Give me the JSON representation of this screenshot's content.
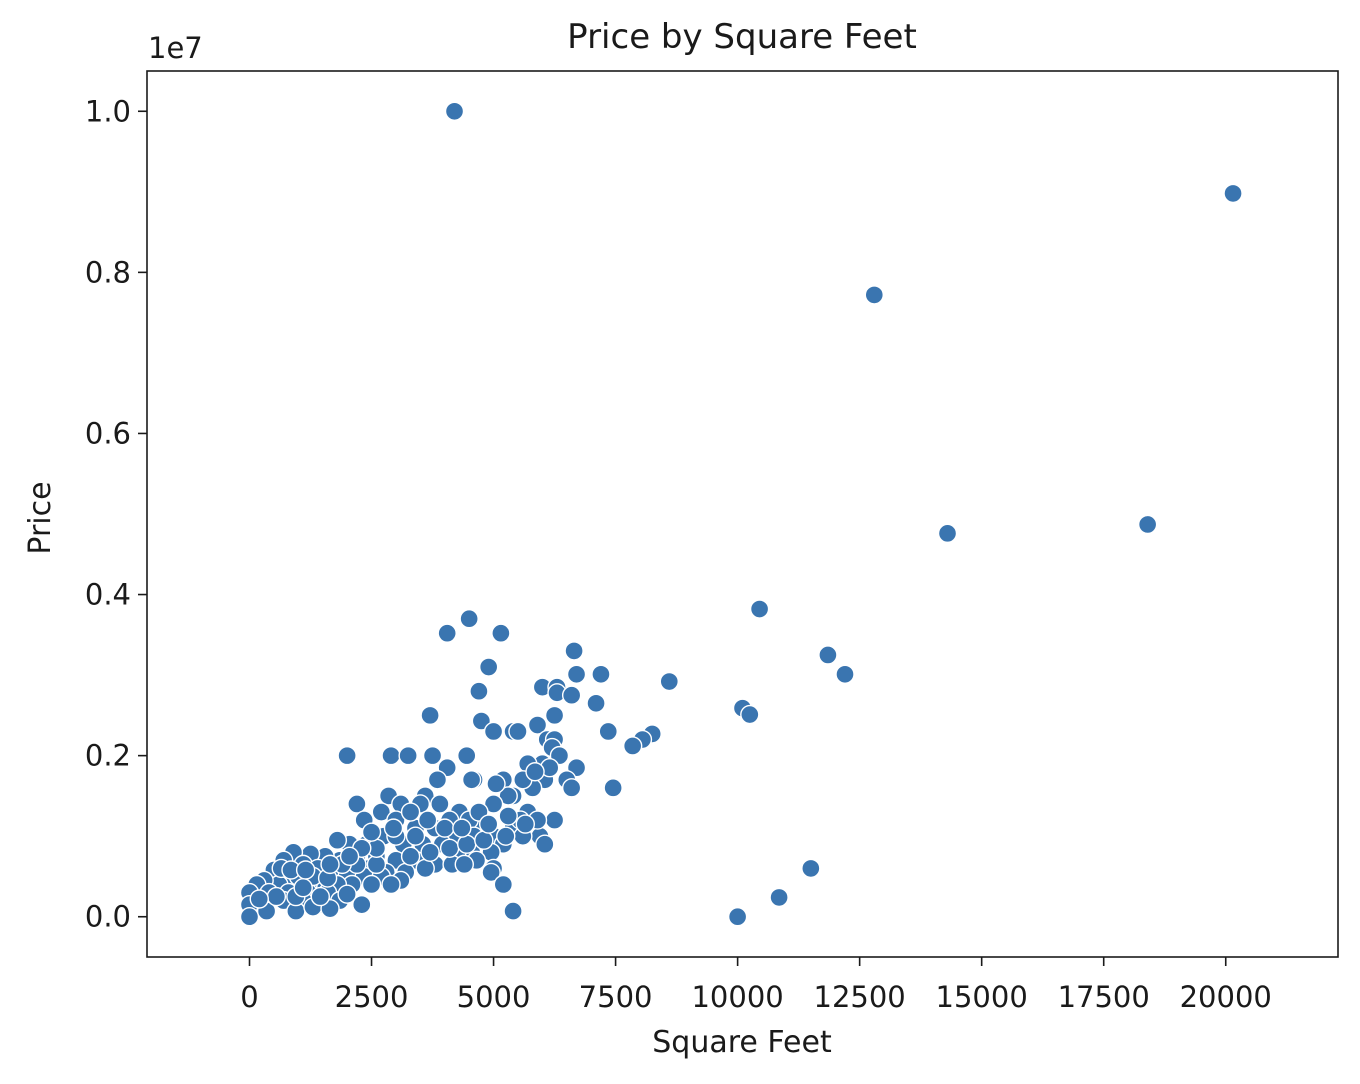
{
  "chart_data": {
    "type": "scatter",
    "title": "Price by Square Feet",
    "xlabel": "Square Feet",
    "ylabel": "Price",
    "y_offset_label": "1e7",
    "xlim": [
      -2100,
      22300
    ],
    "ylim": [
      -0.05,
      1.05
    ],
    "y_unit_multiplier": 10000000,
    "x_ticks": [
      0,
      2500,
      5000,
      7500,
      10000,
      12500,
      15000,
      17500,
      20000
    ],
    "x_tick_labels": [
      "0",
      "2500",
      "5000",
      "7500",
      "10000",
      "12500",
      "15000",
      "17500",
      "20000"
    ],
    "y_ticks": [
      0.0,
      0.2,
      0.4,
      0.6,
      0.8,
      1.0
    ],
    "y_tick_labels": [
      "0.0",
      "0.2",
      "0.4",
      "0.6",
      "0.8",
      "1.0"
    ],
    "grid": false,
    "marker_color": "#3a75b0",
    "marker_edge_color": "#ffffff",
    "points": [
      [
        4200,
        1.0
      ],
      [
        20150,
        0.898
      ],
      [
        12800,
        0.772
      ],
      [
        14300,
        0.476
      ],
      [
        18400,
        0.487
      ],
      [
        10450,
        0.382
      ],
      [
        11850,
        0.325
      ],
      [
        12200,
        0.301
      ],
      [
        10100,
        0.259
      ],
      [
        10250,
        0.251
      ],
      [
        11500,
        0.06
      ],
      [
        10850,
        0.024
      ],
      [
        10000,
        0.0
      ],
      [
        4050,
        0.352
      ],
      [
        4500,
        0.37
      ],
      [
        5150,
        0.352
      ],
      [
        4900,
        0.31
      ],
      [
        4700,
        0.28
      ],
      [
        6650,
        0.33
      ],
      [
        6700,
        0.301
      ],
      [
        7200,
        0.301
      ],
      [
        8600,
        0.292
      ],
      [
        6000,
        0.285
      ],
      [
        6300,
        0.285
      ],
      [
        6300,
        0.278
      ],
      [
        6600,
        0.275
      ],
      [
        7100,
        0.265
      ],
      [
        3700,
        0.25
      ],
      [
        6250,
        0.25
      ],
      [
        4750,
        0.243
      ],
      [
        5900,
        0.238
      ],
      [
        5000,
        0.23
      ],
      [
        5400,
        0.23
      ],
      [
        5500,
        0.23
      ],
      [
        7350,
        0.23
      ],
      [
        8250,
        0.227
      ],
      [
        8050,
        0.22
      ],
      [
        7850,
        0.212
      ],
      [
        6100,
        0.22
      ],
      [
        6250,
        0.22
      ],
      [
        6000,
        0.19
      ],
      [
        6200,
        0.21
      ],
      [
        6350,
        0.2
      ],
      [
        5700,
        0.19
      ],
      [
        6700,
        0.185
      ],
      [
        6500,
        0.17
      ],
      [
        6600,
        0.16
      ],
      [
        7450,
        0.16
      ],
      [
        6050,
        0.17
      ],
      [
        5800,
        0.16
      ],
      [
        5600,
        0.17
      ],
      [
        5200,
        0.17
      ],
      [
        4600,
        0.17
      ],
      [
        2000,
        0.2
      ],
      [
        2900,
        0.2
      ],
      [
        3250,
        0.2
      ],
      [
        3750,
        0.2
      ],
      [
        4450,
        0.2
      ],
      [
        4050,
        0.185
      ],
      [
        3850,
        0.17
      ],
      [
        5400,
        0.15
      ],
      [
        6250,
        0.12
      ],
      [
        5300,
        0.15
      ],
      [
        2200,
        0.14
      ],
      [
        3600,
        0.15
      ],
      [
        2850,
        0.15
      ],
      [
        4300,
        0.13
      ],
      [
        5000,
        0.14
      ],
      [
        5700,
        0.13
      ],
      [
        5950,
        0.1
      ],
      [
        6050,
        0.09
      ],
      [
        5900,
        0.12
      ],
      [
        5400,
        0.11
      ],
      [
        4800,
        0.11
      ],
      [
        4500,
        0.12
      ],
      [
        4100,
        0.12
      ],
      [
        3900,
        0.14
      ],
      [
        3500,
        0.14
      ],
      [
        3100,
        0.14
      ],
      [
        2700,
        0.13
      ],
      [
        2350,
        0.12
      ],
      [
        3000,
        0.12
      ],
      [
        3400,
        0.11
      ],
      [
        3800,
        0.11
      ],
      [
        4200,
        0.1
      ],
      [
        4600,
        0.1
      ],
      [
        5000,
        0.1
      ],
      [
        5200,
        0.09
      ],
      [
        5600,
        0.1
      ],
      [
        4950,
        0.08
      ],
      [
        4550,
        0.08
      ],
      [
        4250,
        0.08
      ],
      [
        3950,
        0.09
      ],
      [
        3550,
        0.09
      ],
      [
        3150,
        0.09
      ],
      [
        2750,
        0.1
      ],
      [
        2400,
        0.09
      ],
      [
        2050,
        0.09
      ],
      [
        1800,
        0.095
      ],
      [
        2200,
        0.075
      ],
      [
        2600,
        0.075
      ],
      [
        3000,
        0.07
      ],
      [
        3400,
        0.07
      ],
      [
        3800,
        0.065
      ],
      [
        4150,
        0.065
      ],
      [
        4650,
        0.07
      ],
      [
        5000,
        0.06
      ],
      [
        4950,
        0.055
      ],
      [
        5200,
        0.04
      ],
      [
        5400,
        0.007
      ],
      [
        4400,
        0.065
      ],
      [
        3600,
        0.06
      ],
      [
        3200,
        0.055
      ],
      [
        2800,
        0.055
      ],
      [
        2450,
        0.06
      ],
      [
        2150,
        0.06
      ],
      [
        1850,
        0.07
      ],
      [
        1550,
        0.075
      ],
      [
        1250,
        0.078
      ],
      [
        900,
        0.08
      ],
      [
        700,
        0.07
      ],
      [
        500,
        0.058
      ],
      [
        1100,
        0.065
      ],
      [
        1400,
        0.06
      ],
      [
        1700,
        0.055
      ],
      [
        2000,
        0.05
      ],
      [
        2350,
        0.05
      ],
      [
        2700,
        0.05
      ],
      [
        3100,
        0.045
      ],
      [
        2900,
        0.04
      ],
      [
        2500,
        0.04
      ],
      [
        2100,
        0.04
      ],
      [
        1800,
        0.04
      ],
      [
        1500,
        0.04
      ],
      [
        1200,
        0.04
      ],
      [
        900,
        0.045
      ],
      [
        600,
        0.04
      ],
      [
        300,
        0.045
      ],
      [
        150,
        0.04
      ],
      [
        0,
        0.03
      ],
      [
        400,
        0.03
      ],
      [
        800,
        0.03
      ],
      [
        1200,
        0.03
      ],
      [
        1600,
        0.03
      ],
      [
        1850,
        0.02
      ],
      [
        1500,
        0.015
      ],
      [
        1100,
        0.02
      ],
      [
        700,
        0.02
      ],
      [
        300,
        0.015
      ],
      [
        0,
        0.015
      ],
      [
        0,
        0.0
      ],
      [
        350,
        0.007
      ],
      [
        950,
        0.007
      ],
      [
        1300,
        0.012
      ],
      [
        1650,
        0.01
      ],
      [
        2300,
        0.015
      ],
      [
        1000,
        0.05
      ],
      [
        650,
        0.06
      ],
      [
        1300,
        0.05
      ],
      [
        1600,
        0.048
      ],
      [
        2200,
        0.065
      ],
      [
        2600,
        0.065
      ],
      [
        3300,
        0.075
      ],
      [
        3700,
        0.08
      ],
      [
        4100,
        0.085
      ],
      [
        4450,
        0.09
      ],
      [
        4800,
        0.095
      ],
      [
        5250,
        0.1
      ],
      [
        5550,
        0.12
      ],
      [
        4700,
        0.13
      ],
      [
        4900,
        0.115
      ],
      [
        3400,
        0.1
      ],
      [
        3000,
        0.1
      ],
      [
        2600,
        0.085
      ],
      [
        2300,
        0.085
      ],
      [
        1900,
        0.065
      ],
      [
        1650,
        0.065
      ],
      [
        950,
        0.025
      ],
      [
        550,
        0.025
      ],
      [
        1100,
        0.036
      ],
      [
        1450,
        0.025
      ],
      [
        2000,
        0.028
      ],
      [
        200,
        0.022
      ],
      [
        850,
        0.058
      ],
      [
        1150,
        0.058
      ],
      [
        4550,
        0.17
      ],
      [
        5050,
        0.165
      ],
      [
        6150,
        0.185
      ],
      [
        5850,
        0.18
      ],
      [
        3300,
        0.13
      ],
      [
        2950,
        0.11
      ],
      [
        3650,
        0.12
      ],
      [
        4000,
        0.11
      ],
      [
        4350,
        0.11
      ],
      [
        5650,
        0.115
      ],
      [
        5300,
        0.125
      ],
      [
        2500,
        0.105
      ],
      [
        2050,
        0.075
      ]
    ]
  }
}
